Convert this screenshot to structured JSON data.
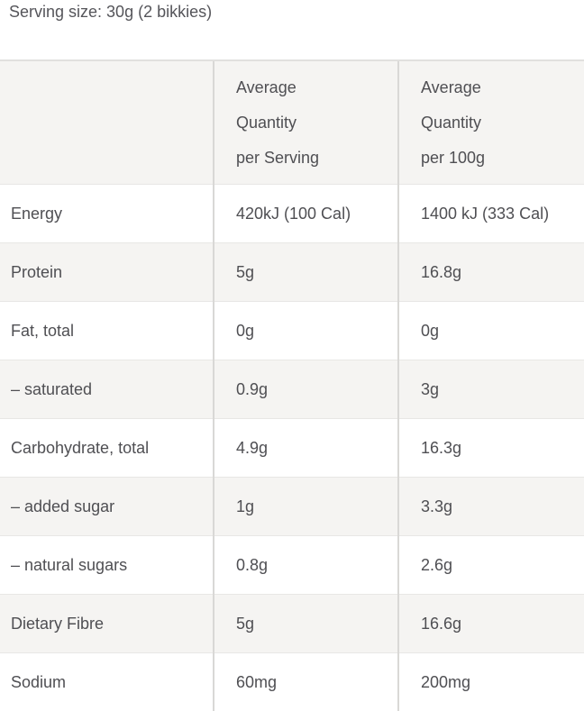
{
  "page": {
    "serving_size": "Serving size: 30g (2 bikkies)"
  },
  "table": {
    "header": {
      "nutrient_col": "",
      "per_serving": "Average\nQuantity\nper Serving",
      "per_100g": "Average\nQuantity\nper 100g"
    },
    "rows": [
      {
        "label": "Energy",
        "per_serving": "420kJ (100 Cal)",
        "per_100g": "1400 kJ (333 Cal)"
      },
      {
        "label": "Protein",
        "per_serving": "5g",
        "per_100g": "16.8g"
      },
      {
        "label": "Fat, total",
        "per_serving": "0g",
        "per_100g": "0g"
      },
      {
        "label": "– saturated",
        "per_serving": "0.9g",
        "per_100g": "3g"
      },
      {
        "label": "Carbohydrate, total",
        "per_serving": "4.9g",
        "per_100g": "16.3g"
      },
      {
        "label": "– added sugar",
        "per_serving": "1g",
        "per_100g": "3.3g"
      },
      {
        "label": "– natural sugars",
        "per_serving": "0.8g",
        "per_100g": "2.6g"
      },
      {
        "label": "Dietary Fibre",
        "per_serving": "5g",
        "per_100g": "16.6g"
      },
      {
        "label": "Sodium",
        "per_serving": "60mg",
        "per_100g": "200mg"
      }
    ],
    "colors": {
      "row_shade": "#f5f4f2",
      "vertical_divider": "#d9d8d6",
      "horizontal_divider": "#e8e7e5",
      "text": "#4f4f53",
      "background": "#ffffff"
    }
  }
}
